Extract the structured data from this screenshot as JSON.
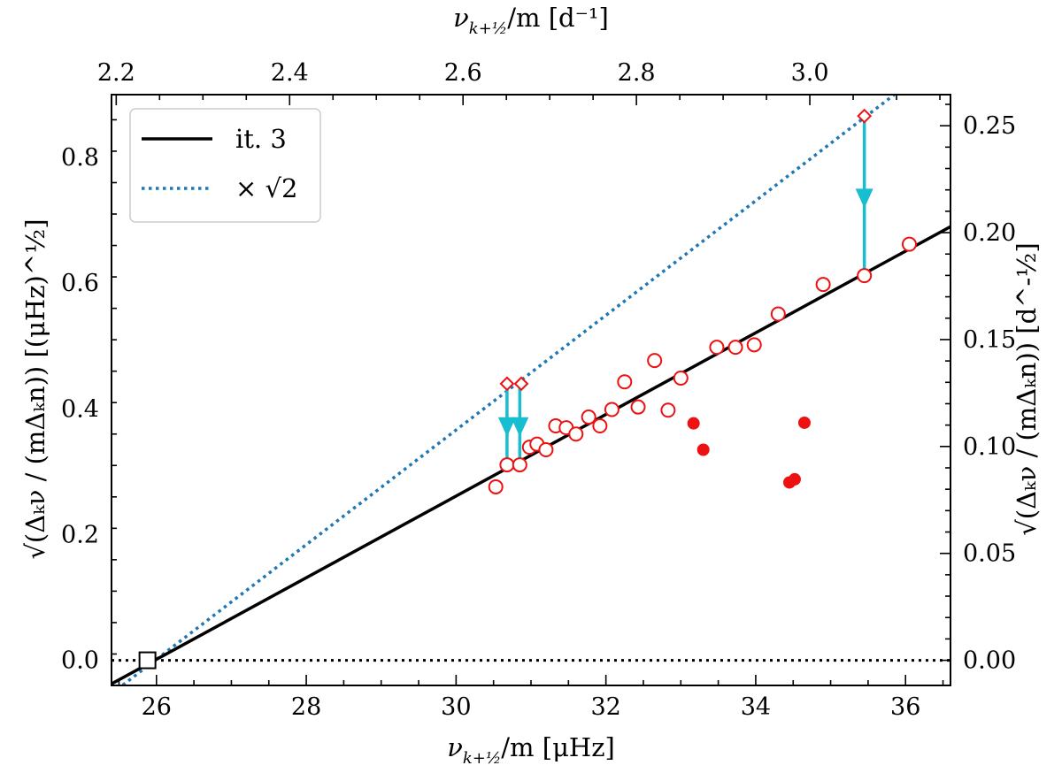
{
  "chart_data": {
    "type": "scatter",
    "bottom_axis": {
      "label_prefix": "ν",
      "label_sub": "k+½",
      "label_suffix": "/m [μHz]",
      "range": [
        25.4,
        36.6
      ],
      "ticks": [
        26,
        28,
        30,
        32,
        34,
        36
      ]
    },
    "top_axis": {
      "label_prefix": "ν",
      "label_sub": "k+½",
      "label_suffix": "/m [d⁻¹]",
      "ticks": [
        2.2,
        2.4,
        2.6,
        2.8,
        3.0
      ],
      "tick_labels": [
        "2.2",
        "2.4",
        "2.6",
        "2.8",
        "3.0"
      ]
    },
    "left_axis": {
      "label": "√(Δₖν / (mΔₖn)) [(μHz)^½]",
      "range": [
        -0.04,
        0.9
      ],
      "ticks": [
        0.0,
        0.2,
        0.4,
        0.6,
        0.8
      ],
      "tick_labels": [
        "0.0",
        "0.2",
        "0.4",
        "0.6",
        "0.8"
      ]
    },
    "right_axis": {
      "label": "√(Δₖν / (mΔₖn)) [d^-½]",
      "ticks": [
        0.0,
        0.05,
        0.1,
        0.15,
        0.2,
        0.25
      ],
      "tick_labels": [
        "0.00",
        "0.05",
        "0.10",
        "0.15",
        "0.20",
        "0.25"
      ]
    },
    "series": [
      {
        "name": "it. 3",
        "type": "line",
        "style": "solid",
        "color": "#000000",
        "points": [
          [
            25.4,
            -0.0375
          ],
          [
            36.6,
            0.69
          ]
        ]
      },
      {
        "name": "× √2",
        "type": "line",
        "style": "dotted",
        "color": "#1f77b4",
        "points": [
          [
            25.4,
            -0.0531
          ],
          [
            35.85,
            0.9
          ]
        ]
      },
      {
        "name": "zero line",
        "type": "line",
        "style": "dotted",
        "color": "#000000",
        "y": 0.0
      }
    ],
    "open_circles": {
      "color": "#ee1111",
      "x": [
        30.53,
        30.68,
        30.85,
        30.98,
        31.08,
        31.2,
        31.33,
        31.47,
        31.6,
        31.77,
        31.92,
        32.08,
        32.25,
        32.43,
        32.65,
        32.83,
        33.0,
        33.48,
        33.73,
        33.98,
        34.3,
        34.9,
        35.45,
        36.05
      ],
      "y": [
        0.276,
        0.311,
        0.311,
        0.339,
        0.344,
        0.335,
        0.373,
        0.37,
        0.36,
        0.387,
        0.373,
        0.399,
        0.443,
        0.403,
        0.477,
        0.398,
        0.449,
        0.498,
        0.498,
        0.502,
        0.551,
        0.598,
        0.612,
        0.662
      ]
    },
    "filled_circles": {
      "color": "#ee1111",
      "x": [
        33.17,
        33.3,
        34.45,
        34.52,
        34.65
      ],
      "y": [
        0.377,
        0.335,
        0.283,
        0.288,
        0.378
      ]
    },
    "diamonds": {
      "color": "#ee1111",
      "x": [
        30.68,
        30.87,
        35.45
      ],
      "y": [
        0.44,
        0.44,
        0.866
      ]
    },
    "arrows": {
      "color": "#17becf",
      "items": [
        {
          "x": 30.68,
          "from": 0.44,
          "to": 0.311
        },
        {
          "x": 30.85,
          "from": 0.44,
          "to": 0.311
        },
        {
          "x": 35.45,
          "from": 0.866,
          "to": 0.612
        }
      ]
    },
    "reference_point": {
      "x": 25.88,
      "y": 0.0,
      "marker": "open-square"
    },
    "legend": {
      "position": "top-left",
      "entries": [
        {
          "label": "it. 3",
          "style": "solid",
          "color": "#000000"
        },
        {
          "label": "× √2",
          "style": "dotted",
          "color": "#1f77b4"
        }
      ]
    }
  }
}
